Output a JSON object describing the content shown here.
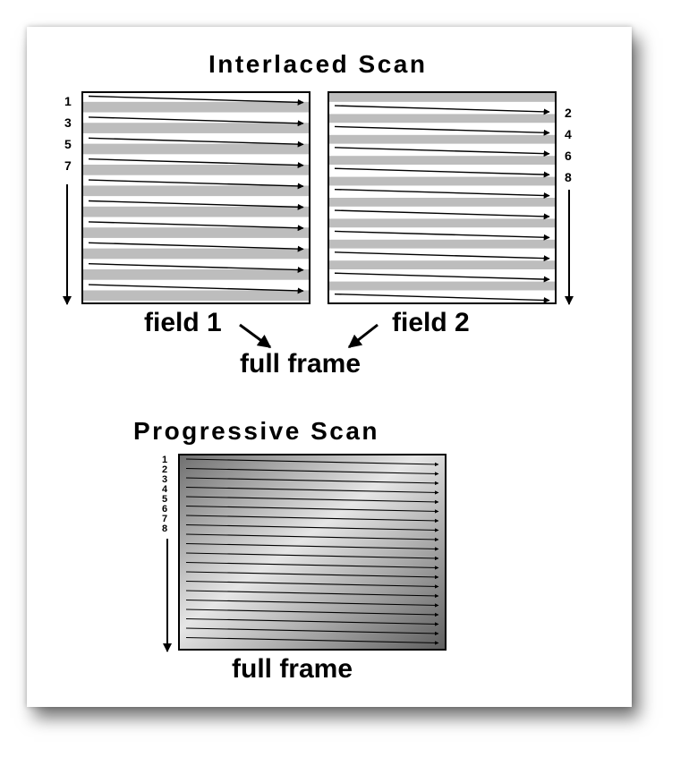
{
  "interlaced": {
    "title": "Interlaced Scan",
    "field1_label": "field 1",
    "field2_label": "field 2",
    "full_frame_label": "full frame",
    "field1_line_numbers": [
      "1",
      "3",
      "5",
      "7"
    ],
    "field2_line_numbers": [
      "2",
      "4",
      "6",
      "8"
    ]
  },
  "progressive": {
    "title": "Progressive Scan",
    "full_frame_label": "full frame",
    "line_numbers": [
      "1",
      "2",
      "3",
      "4",
      "5",
      "6",
      "7",
      "8"
    ]
  },
  "colors": {
    "stripe_gray": "#bdbdbd",
    "line": "#000000",
    "gradient_light": "#e6e6e6",
    "gradient_dark": "#6f6f6f"
  }
}
